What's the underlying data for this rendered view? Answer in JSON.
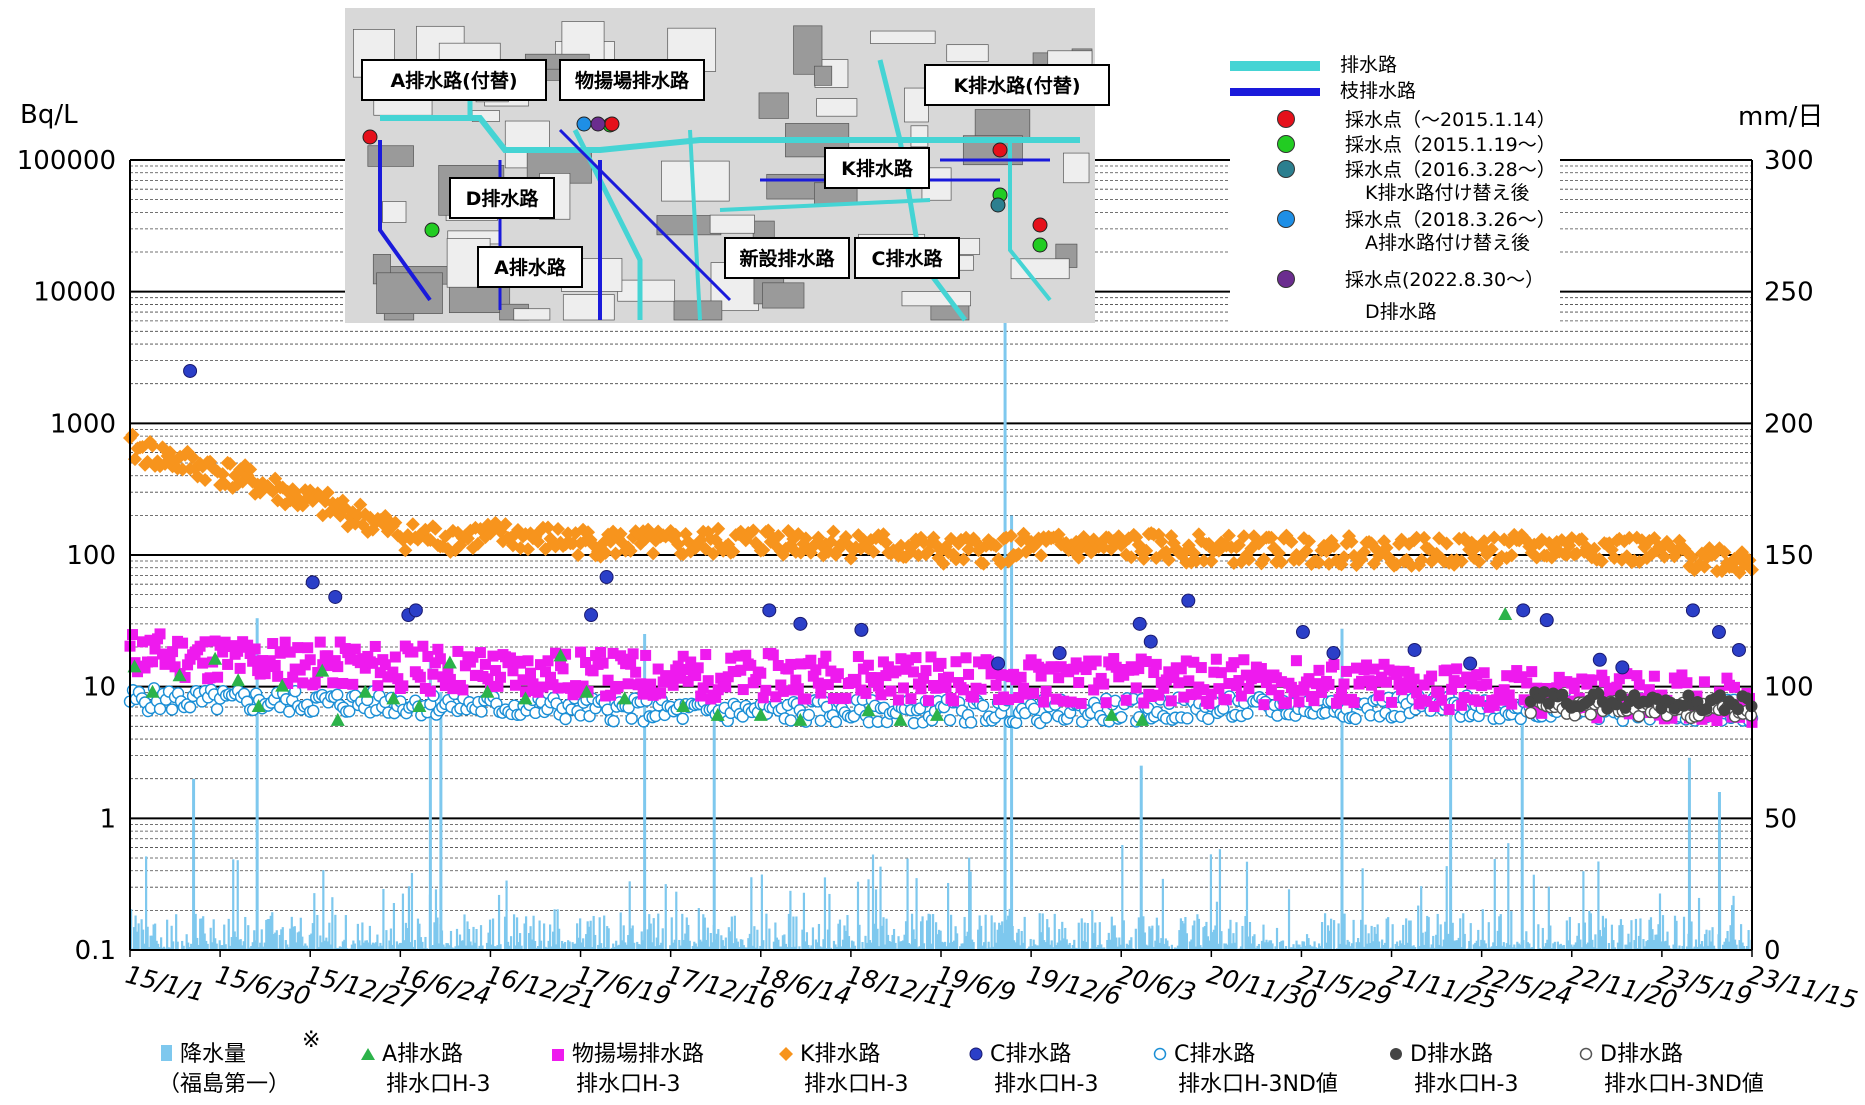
{
  "chart_data": {
    "type": "scatter",
    "left_axis": {
      "unit": "Bq/L",
      "scale": "log",
      "range": [
        0.1,
        100000
      ],
      "ticks": [
        "100000",
        "10000",
        "1000",
        "100",
        "10",
        "1",
        "0.1"
      ]
    },
    "right_axis": {
      "unit": "mm/日",
      "range": [
        0,
        300
      ],
      "ticks": [
        "300",
        "250",
        "200",
        "150",
        "100",
        "50",
        "0"
      ]
    },
    "x_axis": {
      "range": [
        "2015-01-01",
        "2023-11-15"
      ],
      "tick_labels": [
        "15/1/1",
        "15/6/30",
        "15/12/27",
        "16/6/24",
        "16/12/21",
        "17/6/19",
        "17/12/16",
        "18/6/14",
        "18/12/11",
        "19/6/9",
        "19/12/6",
        "20/6/3",
        "20/11/30",
        "21/5/29",
        "21/11/25",
        "22/5/24",
        "22/11/20",
        "23/5/19",
        "23/11/15"
      ]
    },
    "grid": true,
    "series": [
      {
        "name": "降水量",
        "sub": "（福島第一）",
        "kind": "rain-bar",
        "color": "#7ec8ee",
        "axis": "right",
        "peaks": [
          [
            "2015-09-09",
            126
          ],
          [
            "2015-05-05",
            65
          ],
          [
            "2016-08-20",
            110
          ],
          [
            "2016-09-10",
            98
          ],
          [
            "2017-10-22",
            120
          ],
          [
            "2018-03-10",
            88
          ],
          [
            "2019-10-12",
            285
          ],
          [
            "2019-10-25",
            165
          ],
          [
            "2020-07-10",
            70
          ],
          [
            "2021-08-15",
            122
          ],
          [
            "2022-03-20",
            102
          ],
          [
            "2022-08-10",
            94
          ],
          [
            "2023-07-10",
            73
          ],
          [
            "2023-09-08",
            60
          ]
        ]
      },
      {
        "name": "A排水路",
        "sub": "排水口H-3",
        "kind": "triangle",
        "color": "#2cb34a",
        "points": [
          [
            "2015-01-10",
            14
          ],
          [
            "2015-02-15",
            9
          ],
          [
            "2015-04-10",
            12
          ],
          [
            "2015-06-20",
            16
          ],
          [
            "2015-08-05",
            11
          ],
          [
            "2015-09-15",
            7
          ],
          [
            "2015-11-01",
            10
          ],
          [
            "2016-01-20",
            13
          ],
          [
            "2016-02-20",
            5.5
          ],
          [
            "2016-04-15",
            9
          ],
          [
            "2016-06-10",
            8
          ],
          [
            "2016-08-01",
            7
          ],
          [
            "2016-10-01",
            15
          ],
          [
            "2016-12-15",
            9
          ],
          [
            "2017-03-01",
            8
          ],
          [
            "2017-05-10",
            17
          ],
          [
            "2017-07-01",
            9
          ],
          [
            "2017-09-15",
            8
          ],
          [
            "2018-01-10",
            7
          ],
          [
            "2018-03-20",
            6
          ],
          [
            "2018-06-14",
            6
          ],
          [
            "2018-09-01",
            5.5
          ],
          [
            "2019-01-15",
            6.5
          ],
          [
            "2019-03-20",
            5.5
          ],
          [
            "2019-06-01",
            6
          ],
          [
            "2020-05-15",
            6
          ],
          [
            "2020-07-15",
            5.5
          ],
          [
            "2022-07-10",
            35
          ]
        ]
      },
      {
        "name": "物揚場排水路",
        "sub": "排水口H-3",
        "kind": "square",
        "color": "#ee1aee",
        "band": [
          [
            "2015-01-01",
            18
          ],
          [
            "2016-01-01",
            15
          ],
          [
            "2017-01-01",
            13
          ],
          [
            "2018-01-01",
            12
          ],
          [
            "2019-01-01",
            12
          ],
          [
            "2020-01-01",
            11
          ],
          [
            "2021-01-01",
            11
          ],
          [
            "2022-01-01",
            10
          ],
          [
            "2022-08-01",
            9
          ],
          [
            "2023-11-15",
            8
          ]
        ]
      },
      {
        "name": "K排水路",
        "sub": "排水口H-3",
        "kind": "diamond",
        "color": "#f7941d",
        "band": [
          [
            "2015-01-01",
            650
          ],
          [
            "2015-04-01",
            520
          ],
          [
            "2015-07-01",
            430
          ],
          [
            "2015-10-01",
            330
          ],
          [
            "2016-01-01",
            250
          ],
          [
            "2016-04-01",
            200
          ],
          [
            "2016-07-01",
            140
          ],
          [
            "2016-10-01",
            135
          ],
          [
            "2017-01-01",
            140
          ],
          [
            "2017-07-01",
            125
          ],
          [
            "2018-01-01",
            120
          ],
          [
            "2018-07-01",
            130
          ],
          [
            "2019-01-01",
            120
          ],
          [
            "2019-07-01",
            105
          ],
          [
            "2020-01-01",
            115
          ],
          [
            "2020-07-01",
            115
          ],
          [
            "2021-01-01",
            110
          ],
          [
            "2021-07-01",
            110
          ],
          [
            "2022-01-01",
            105
          ],
          [
            "2022-07-01",
            110
          ],
          [
            "2023-01-01",
            115
          ],
          [
            "2023-11-15",
            90
          ]
        ]
      },
      {
        "name": "C排水路",
        "sub": "排水口H-3",
        "kind": "circle-filled",
        "color": "#2b3fc8",
        "points": [
          [
            "2015-05-01",
            2500
          ],
          [
            "2016-01-01",
            62
          ],
          [
            "2016-02-15",
            48
          ],
          [
            "2016-07-10",
            35
          ],
          [
            "2016-07-25",
            38
          ],
          [
            "2017-07-10",
            35
          ],
          [
            "2017-08-10",
            68
          ],
          [
            "2018-07-01",
            38
          ],
          [
            "2018-09-01",
            30
          ],
          [
            "2019-01-01",
            27
          ],
          [
            "2019-10-01",
            15
          ],
          [
            "2020-02-01",
            18
          ],
          [
            "2020-07-10",
            30
          ],
          [
            "2020-08-01",
            22
          ],
          [
            "2020-10-15",
            45
          ],
          [
            "2021-06-01",
            26
          ],
          [
            "2021-08-01",
            18
          ],
          [
            "2022-01-10",
            19
          ],
          [
            "2022-05-01",
            15
          ],
          [
            "2022-08-15",
            38
          ],
          [
            "2022-10-01",
            32
          ],
          [
            "2023-01-15",
            16
          ],
          [
            "2023-03-01",
            14
          ],
          [
            "2023-07-20",
            38
          ],
          [
            "2023-09-10",
            26
          ],
          [
            "2023-10-20",
            19
          ]
        ]
      },
      {
        "name": "C排水路",
        "sub": "排水口H-3ND値",
        "kind": "circle-open",
        "color": "#1b8fd6",
        "band": [
          [
            "2015-01-01",
            8
          ],
          [
            "2016-06-01",
            7.5
          ],
          [
            "2018-01-01",
            6.5
          ],
          [
            "2019-01-01",
            6.5
          ],
          [
            "2020-01-01",
            6.5
          ],
          [
            "2021-06-01",
            7
          ],
          [
            "2022-06-01",
            7
          ],
          [
            "2023-11-15",
            6.5
          ]
        ]
      },
      {
        "name": "D排水路",
        "sub": "排水口H-3",
        "kind": "circle-dark",
        "color": "#444444",
        "band": [
          [
            "2022-08-30",
            8
          ],
          [
            "2023-11-15",
            7.5
          ]
        ]
      },
      {
        "name": "D排水路",
        "sub": "排水口H-3ND値",
        "kind": "circle-open-gray",
        "color": "#555555",
        "band": [
          [
            "2022-08-30",
            7
          ],
          [
            "2023-11-15",
            6.5
          ]
        ]
      }
    ],
    "note": "※"
  },
  "inset_legend": {
    "drain_line": "排水路",
    "branch_line": "枝排水路",
    "sampling": [
      {
        "label": "採水点（～2015.1.14）",
        "color": "#e5101b"
      },
      {
        "label": "採水点（2015.1.19～）",
        "color": "#22cc22"
      },
      {
        "label": "採水点（2016.3.28～）",
        "sub": "K排水路付け替え後",
        "color": "#2c7f8f"
      },
      {
        "label": "採水点（2018.3.26～）",
        "sub": "A排水路付け替え後",
        "color": "#1e8fe6"
      },
      {
        "label": "採水点(2022.8.30～）",
        "sub": "D排水路",
        "color": "#6b2d8f"
      }
    ]
  },
  "map_labels": [
    "A排水路(付替)",
    "物揚場排水路",
    "K排水路(付替)",
    "D排水路",
    "K排水路",
    "A排水路",
    "新設排水路",
    "C排水路"
  ],
  "colors": {
    "drain": "#45d4d4",
    "branch": "#1a1adb",
    "rain": "#7ec8ee"
  }
}
